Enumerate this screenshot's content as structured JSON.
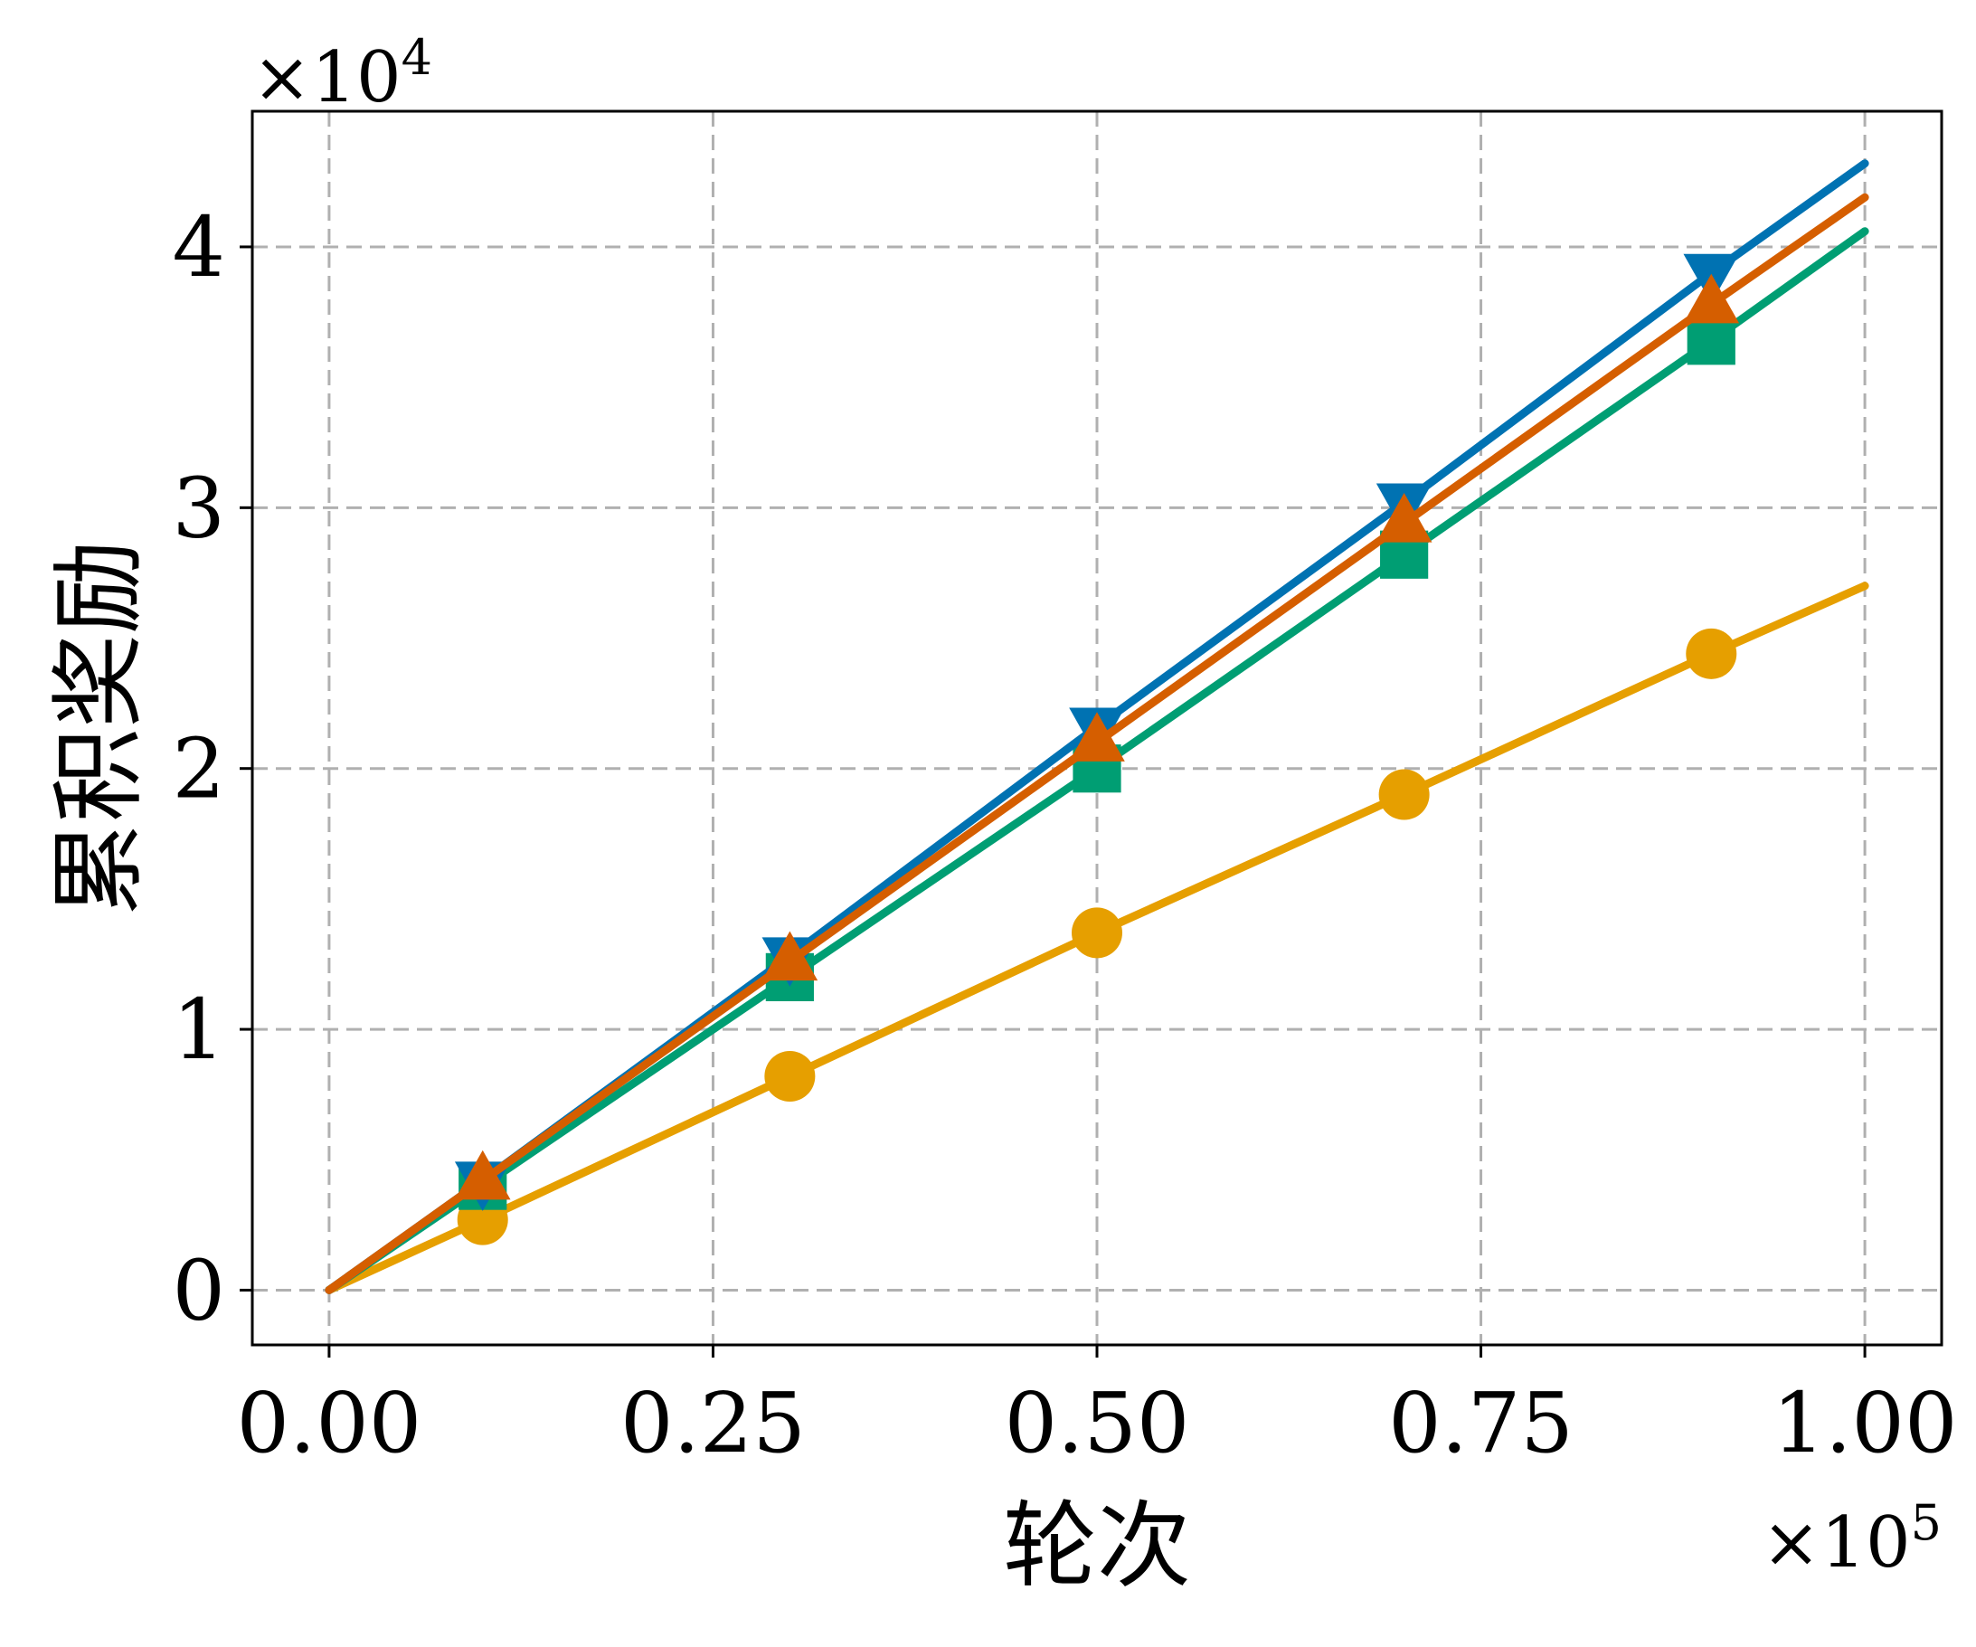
{
  "chart_data": {
    "type": "line",
    "title": "",
    "xlabel": "轮次",
    "ylabel": "累积奖励",
    "x_multiplier": {
      "base": "×10",
      "exponent": "5"
    },
    "y_multiplier": {
      "base": "×10",
      "exponent": "4"
    },
    "xlim": [
      -0.05,
      1.05
    ],
    "ylim": [
      -0.21,
      4.52
    ],
    "x_ticks": [
      {
        "value": 0.0,
        "label": "0.00"
      },
      {
        "value": 0.25,
        "label": "0.25"
      },
      {
        "value": 0.5,
        "label": "0.50"
      },
      {
        "value": 0.75,
        "label": "0.75"
      },
      {
        "value": 1.0,
        "label": "1.00"
      }
    ],
    "y_ticks": [
      {
        "value": 0,
        "label": "0"
      },
      {
        "value": 1,
        "label": "1"
      },
      {
        "value": 2,
        "label": "2"
      },
      {
        "value": 3,
        "label": "3"
      },
      {
        "value": 4,
        "label": "4"
      }
    ],
    "grid": true,
    "legend": "none",
    "series": [
      {
        "color": "#E69F00",
        "marker": "circle",
        "x": [
          0.0,
          0.1,
          0.3,
          0.5,
          0.7,
          0.9,
          1.0
        ],
        "y": [
          0.0,
          0.27,
          0.82,
          1.37,
          1.9,
          2.44,
          2.7
        ],
        "marker_x": [
          0.1,
          0.3,
          0.5,
          0.7,
          0.9
        ],
        "marker_y": [
          0.27,
          0.82,
          1.37,
          1.9,
          2.44
        ]
      },
      {
        "color": "#009E73",
        "marker": "square",
        "x": [
          0.0,
          0.1,
          0.3,
          0.5,
          0.7,
          0.9,
          1.0
        ],
        "y": [
          0.0,
          0.4,
          1.2,
          2.0,
          2.82,
          3.64,
          4.06
        ],
        "marker_x": [
          0.1,
          0.3,
          0.5,
          0.7,
          0.9
        ],
        "marker_y": [
          0.4,
          1.2,
          2.0,
          2.82,
          3.64
        ]
      },
      {
        "color": "#0072B2",
        "marker": "triangle-down",
        "x": [
          0.0,
          0.1,
          0.3,
          0.5,
          0.7,
          0.9,
          1.0
        ],
        "y": [
          0.0,
          0.42,
          1.28,
          2.16,
          3.02,
          3.9,
          4.32
        ],
        "marker_x": [
          0.1,
          0.3,
          0.5,
          0.7,
          0.9
        ],
        "marker_y": [
          0.42,
          1.28,
          2.16,
          3.02,
          3.9
        ]
      },
      {
        "color": "#D55E00",
        "marker": "triangle-up",
        "x": [
          0.0,
          0.1,
          0.3,
          0.5,
          0.7,
          0.9,
          1.0
        ],
        "y": [
          0.0,
          0.42,
          1.26,
          2.1,
          2.94,
          3.78,
          4.19
        ],
        "marker_x": [
          0.1,
          0.3,
          0.5,
          0.7,
          0.9
        ],
        "marker_y": [
          0.42,
          1.26,
          2.1,
          2.94,
          3.78
        ]
      }
    ]
  }
}
